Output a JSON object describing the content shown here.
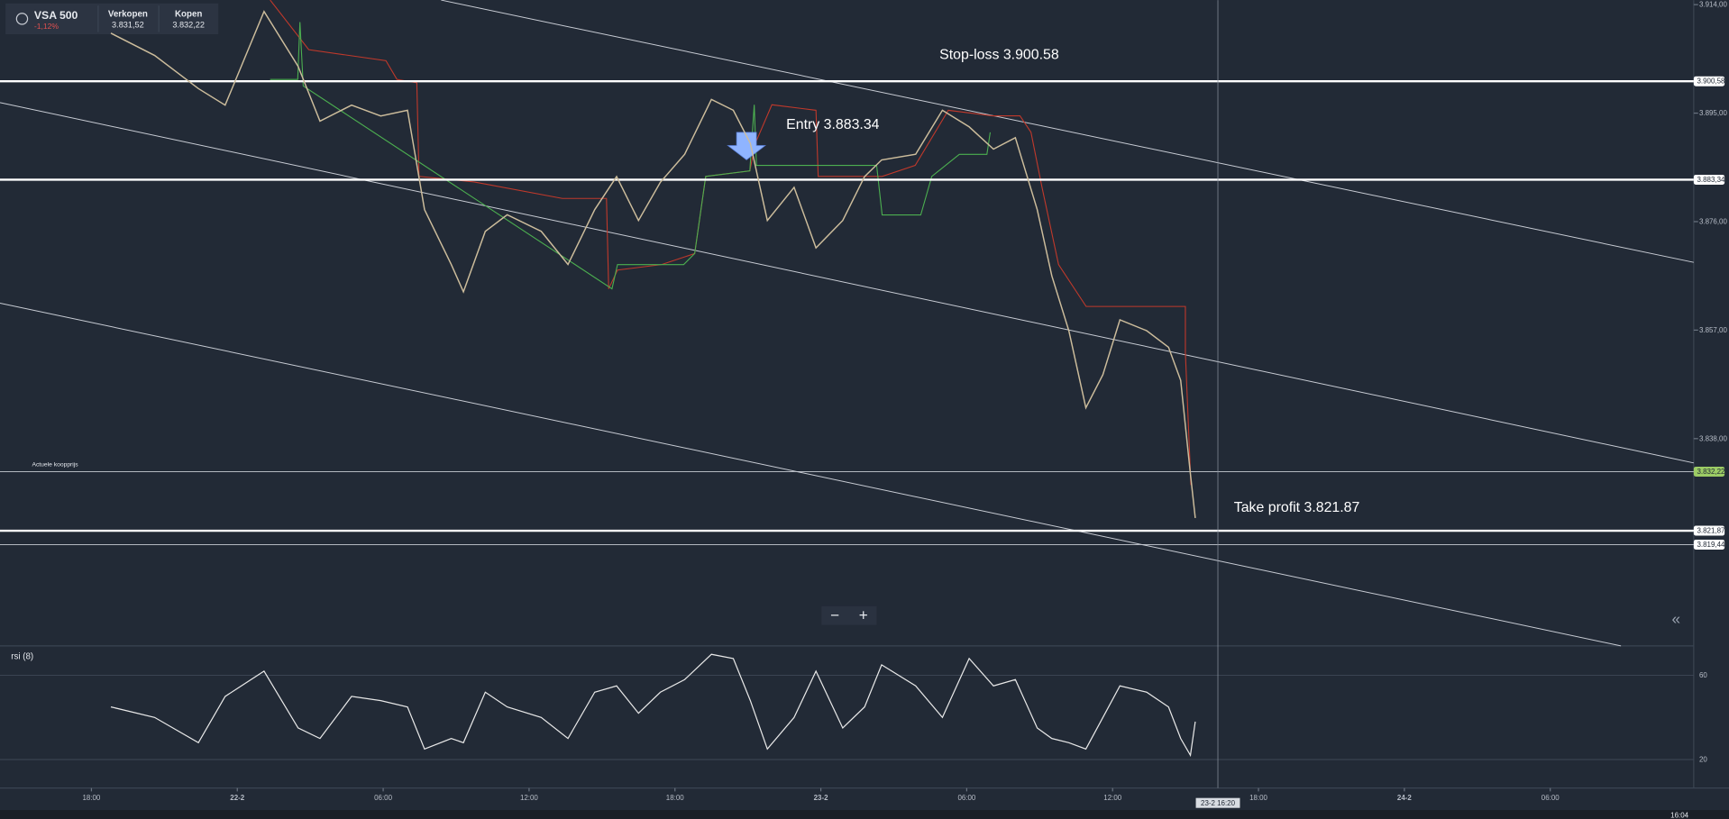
{
  "instrument": {
    "name": "VSA 500",
    "change": "-1,12%",
    "sell_label": "Verkopen",
    "sell_price": "3.831,52",
    "buy_label": "Kopen",
    "buy_price": "3.832,22"
  },
  "chart_data": {
    "type": "line",
    "color": "#cdbd9c",
    "x": [
      18.8,
      20.6,
      22.4,
      23.5,
      25.1,
      26.5,
      27.4,
      28.7,
      29.9,
      31.0,
      31.7,
      32.8,
      33.3,
      34.2,
      35.1,
      36.5,
      37.6,
      38.7,
      39.6,
      40.5,
      41.4,
      42.4,
      43.5,
      44.4,
      45.1,
      45.8,
      46.9,
      47.8,
      48.9,
      49.8,
      50.5,
      51.9,
      53.0,
      54.1,
      55.1,
      56.0,
      56.9,
      57.5,
      58.2,
      58.9,
      59.6,
      60.3,
      61.4,
      62.3,
      62.8,
      63.2,
      63.4
    ],
    "values": [
      3909.0,
      3905.1,
      3899.3,
      3896.4,
      3912.8,
      3903.2,
      3893.6,
      3896.4,
      3894.5,
      3895.5,
      3878.1,
      3868.5,
      3863.7,
      3874.3,
      3877.2,
      3874.3,
      3868.5,
      3878.1,
      3883.9,
      3876.2,
      3882.9,
      3887.8,
      3897.4,
      3895.5,
      3889.7,
      3876.2,
      3882.0,
      3871.4,
      3876.2,
      3883.9,
      3886.8,
      3887.8,
      3895.5,
      3892.6,
      3888.7,
      3890.7,
      3878.1,
      3866.5,
      3856.9,
      3843.4,
      3849.2,
      3858.8,
      3856.9,
      3854.0,
      3848.2,
      3831.8,
      3824.1
    ],
    "xlim": [
      14.24,
      83.9
    ],
    "xticks": [
      {
        "value": 18,
        "label": "18:00"
      },
      {
        "value": 24,
        "label": "22-2"
      },
      {
        "value": 30,
        "label": "06:00"
      },
      {
        "value": 36,
        "label": "12:00"
      },
      {
        "value": 42,
        "label": "18:00"
      },
      {
        "value": 48,
        "label": "23-2"
      },
      {
        "value": 54,
        "label": "06:00"
      },
      {
        "value": 60,
        "label": "12:00"
      },
      {
        "value": 66,
        "label": "18:00"
      },
      {
        "value": 72,
        "label": "24-2"
      },
      {
        "value": 78,
        "label": "06:00"
      }
    ],
    "ylim": [
      3801.7,
      3914.8
    ],
    "yticks": [
      {
        "value": 3914,
        "label": "3.914,00"
      },
      {
        "value": 3895,
        "label": "3.895,00"
      },
      {
        "value": 3876,
        "label": "3.876,00"
      },
      {
        "value": 3857,
        "label": "3.857,00"
      },
      {
        "value": 3838,
        "label": "3.838,00"
      }
    ],
    "levels": [
      {
        "label": "Stop-loss 3.900.58",
        "value": 3900.58,
        "tag": "3.900,58"
      },
      {
        "label": "Entry 3.883.34",
        "value": 3883.34,
        "tag": "3.883,34"
      },
      {
        "label": "Actuele koopprijs",
        "value": 3832.22,
        "tag": "3.832,22"
      },
      {
        "label": "Take profit 3.821.87",
        "value": 3821.87,
        "tag": "3.821,87"
      },
      {
        "value": 3819.44,
        "tag": "3.819,44"
      }
    ]
  },
  "rsi": {
    "title": "rsi (8)",
    "color": "#e8e8e8",
    "values": [
      45,
      40,
      28,
      50,
      62,
      35,
      30,
      50,
      48,
      45,
      25,
      30,
      28,
      52,
      45,
      40,
      30,
      52,
      55,
      42,
      52,
      58,
      70,
      68,
      48,
      25,
      40,
      62,
      35,
      45,
      65,
      55,
      40,
      68,
      55,
      58,
      35,
      30,
      28,
      25,
      40,
      55,
      52,
      45,
      30,
      22,
      38
    ],
    "ylim": [
      8,
      74
    ],
    "yticks": [
      20,
      60
    ]
  },
  "crosshair": {
    "x": 64.33,
    "label": "23-2 16:20"
  },
  "clock": "16:04"
}
